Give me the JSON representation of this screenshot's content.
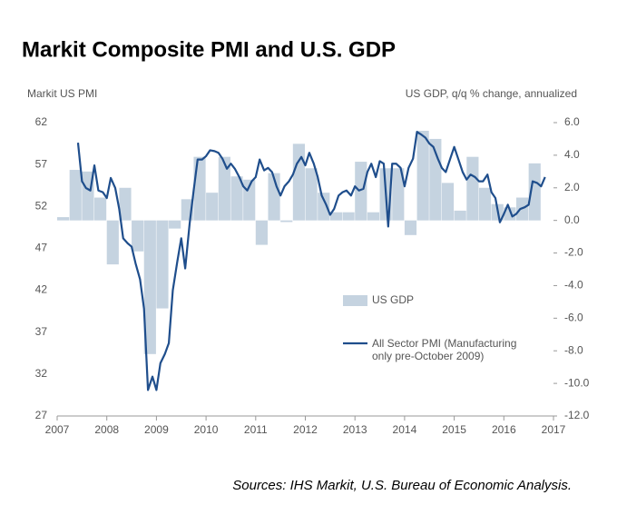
{
  "chart_data": {
    "type": "bar_line",
    "title": "Markit Composite PMI and U.S. GDP",
    "y_label": "Markit US  PMI",
    "y2_label": "US GDP, q/q % change, annualized",
    "source": "Sources: IHS Markit, U.S. Bureau of Economic Analysis.",
    "xlim": [
      2007,
      2017
    ],
    "xticks": [
      2007,
      2008,
      2009,
      2010,
      2011,
      2012,
      2013,
      2014,
      2015,
      2016,
      2017
    ],
    "ylim": [
      27,
      62
    ],
    "yticks": [
      62,
      57,
      52,
      47,
      42,
      37,
      32,
      27
    ],
    "y2lim": [
      -12,
      6
    ],
    "y2ticks": [
      {
        "value": 6,
        "label": "6.0"
      },
      {
        "value": 4,
        "label": "4.0"
      },
      {
        "value": 2,
        "label": "2.0"
      },
      {
        "value": 0,
        "label": "0.0"
      },
      {
        "value": -2,
        "label": "-2.0"
      },
      {
        "value": -4,
        "label": "-4.0"
      },
      {
        "value": -6,
        "label": "-6.0"
      },
      {
        "value": -8,
        "label": "-8.0"
      },
      {
        "value": -10,
        "label": "-10.0"
      },
      {
        "value": -12,
        "label": "-12.0"
      }
    ],
    "series": [
      {
        "name": "US GDP",
        "type": "bar",
        "axis": "y2",
        "color": "#c5d3e0",
        "width": 0.25,
        "x": [
          2007,
          2007.25,
          2007.5,
          2007.75,
          2008,
          2008.25,
          2008.5,
          2008.75,
          2009,
          2009.25,
          2009.5,
          2009.75,
          2010,
          2010.25,
          2010.5,
          2010.75,
          2011,
          2011.25,
          2011.5,
          2011.75,
          2012,
          2012.25,
          2012.5,
          2012.75,
          2013,
          2013.25,
          2013.5,
          2013.75,
          2014,
          2014.25,
          2014.5,
          2014.75,
          2015,
          2015.25,
          2015.5,
          2015.75,
          2016,
          2016.25,
          2016.5
        ],
        "values": [
          0.2,
          3.1,
          3.0,
          1.4,
          -2.7,
          2.0,
          -1.9,
          -8.2,
          -5.4,
          -0.5,
          1.3,
          3.9,
          1.7,
          3.9,
          2.7,
          2.5,
          -1.5,
          2.9,
          -0.1,
          4.7,
          3.2,
          1.7,
          0.5,
          0.5,
          3.6,
          0.5,
          3.2,
          3.2,
          -0.9,
          5.5,
          5.0,
          2.3,
          0.6,
          3.9,
          2.0,
          1.0,
          0.8,
          1.4,
          3.5
        ]
      },
      {
        "name": "All Sector PMI (Manufacturing only pre-October 2009)",
        "type": "line",
        "axis": "y",
        "color": "#1f4e8c",
        "x": [
          2007.42,
          2007.5,
          2007.58,
          2007.67,
          2007.75,
          2007.83,
          2007.92,
          2008,
          2008.08,
          2008.17,
          2008.25,
          2008.33,
          2008.42,
          2008.5,
          2008.58,
          2008.67,
          2008.75,
          2008.83,
          2008.92,
          2009,
          2009.08,
          2009.17,
          2009.25,
          2009.33,
          2009.42,
          2009.5,
          2009.58,
          2009.67,
          2009.75,
          2009.83,
          2009.92,
          2010,
          2010.08,
          2010.17,
          2010.25,
          2010.33,
          2010.42,
          2010.5,
          2010.58,
          2010.67,
          2010.75,
          2010.83,
          2010.92,
          2011,
          2011.08,
          2011.17,
          2011.25,
          2011.33,
          2011.42,
          2011.5,
          2011.58,
          2011.67,
          2011.75,
          2011.83,
          2011.92,
          2012,
          2012.08,
          2012.17,
          2012.25,
          2012.33,
          2012.42,
          2012.5,
          2012.58,
          2012.67,
          2012.75,
          2012.83,
          2012.92,
          2013,
          2013.08,
          2013.17,
          2013.25,
          2013.33,
          2013.42,
          2013.5,
          2013.58,
          2013.67,
          2013.75,
          2013.83,
          2013.92,
          2014,
          2014.08,
          2014.17,
          2014.25,
          2014.33,
          2014.42,
          2014.5,
          2014.58,
          2014.67,
          2014.75,
          2014.83,
          2014.92,
          2015,
          2015.08,
          2015.17,
          2015.25,
          2015.33,
          2015.42,
          2015.5,
          2015.58,
          2015.67,
          2015.75,
          2015.83,
          2015.92,
          2016,
          2016.08,
          2016.17,
          2016.25,
          2016.33,
          2016.42,
          2016.5,
          2016.58,
          2016.67,
          2016.75,
          2016.83
        ],
        "values": [
          59.6,
          55,
          54.2,
          53.9,
          56.9,
          53.9,
          53.7,
          53,
          55.4,
          54.2,
          51.7,
          48.2,
          47.6,
          47.2,
          45.2,
          43.3,
          39.8,
          30.1,
          31.7,
          30.1,
          33.3,
          34.4,
          35.7,
          42,
          45.4,
          48.2,
          44.6,
          50,
          53.9,
          57.6,
          57.6,
          58,
          58.7,
          58.6,
          58.4,
          57.7,
          56.5,
          57.1,
          56.5,
          55.5,
          54.4,
          53.9,
          55,
          55.5,
          57.6,
          56.3,
          56.6,
          56.1,
          54.4,
          53.3,
          54.4,
          55,
          55.8,
          57.1,
          57.9,
          56.9,
          58.4,
          57.1,
          55.5,
          53.3,
          52.2,
          51,
          51.7,
          53.3,
          53.7,
          53.9,
          53.3,
          54.4,
          53.9,
          54.1,
          56.1,
          57.1,
          55.5,
          57.4,
          57.1,
          49.6,
          57.1,
          57.1,
          56.6,
          54.4,
          56.6,
          57.7,
          60.9,
          60.6,
          60.2,
          59.5,
          59.1,
          57.7,
          56.6,
          56.1,
          57.7,
          59.1,
          57.7,
          56.1,
          55.2,
          55.8,
          55.5,
          55,
          55,
          55.8,
          53.7,
          53,
          50.1,
          51.1,
          52.2,
          50.8,
          51.1,
          51.7,
          51.9,
          52.2,
          55,
          54.8,
          54.4,
          55.5
        ]
      }
    ]
  }
}
